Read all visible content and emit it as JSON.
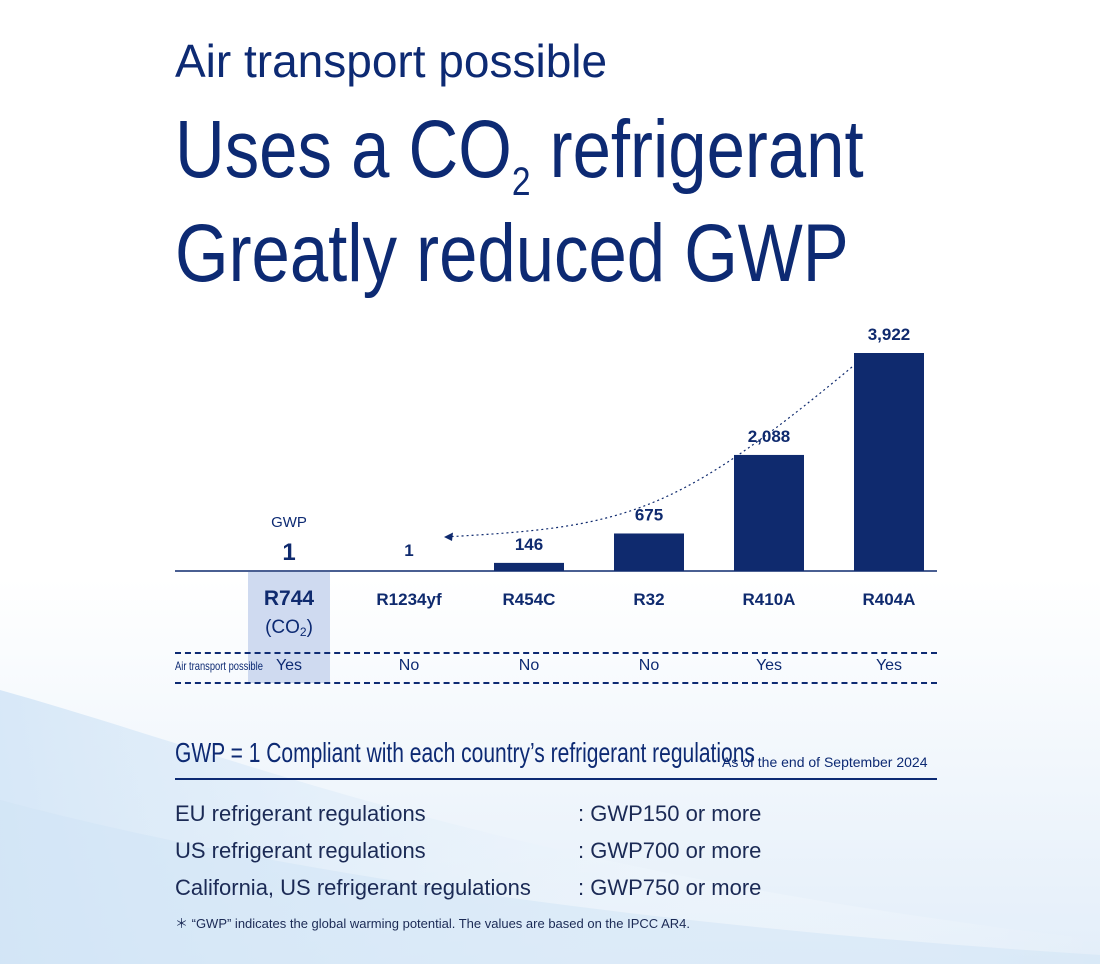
{
  "heading": {
    "line1": "Air transport possible",
    "line2_pre": "Uses a CO",
    "line2_sub": "2",
    "line2_post": " refrigerant",
    "line3": "Greatly reduced GWP"
  },
  "colors": {
    "brand": "#0d2a73",
    "bar": "#0f2a6e",
    "highlight": "#cfdaf0"
  },
  "chart_data": {
    "type": "bar",
    "title": "",
    "xlabel": "",
    "ylabel": "GWP",
    "categories": [
      "R744",
      "R1234yf",
      "R454C",
      "R32",
      "R410A",
      "R404A"
    ],
    "values": [
      1,
      1,
      146,
      675,
      2088,
      3922
    ],
    "value_labels": [
      "1",
      "1",
      "146",
      "675",
      "2,088",
      "3,922"
    ],
    "ylim": [
      0,
      3922
    ],
    "grid": false,
    "legend": "none",
    "annotation": "dotted arrow from R404A to R1234yf"
  },
  "gwp_label": "GWP",
  "r744_sub": {
    "pre": "(CO",
    "sub": "2",
    "post": ")"
  },
  "air_transport": {
    "label": "Air transport possible",
    "values": [
      "Yes",
      "No",
      "No",
      "No",
      "Yes",
      "Yes"
    ]
  },
  "compliance": {
    "heading": "GWP = 1  Compliant with each country’s refrigerant regulations",
    "as_of": "As of the end of September 2024",
    "regulations": [
      {
        "name": "EU refrigerant regulations",
        "value": ": GWP150 or more"
      },
      {
        "name": "US refrigerant regulations",
        "value": ": GWP700 or more"
      },
      {
        "name": "California, US refrigerant regulations",
        "value": ": GWP750 or more"
      }
    ],
    "note": "＊ “GWP” indicates the global warming potential. The values are based on the IPCC AR4."
  }
}
